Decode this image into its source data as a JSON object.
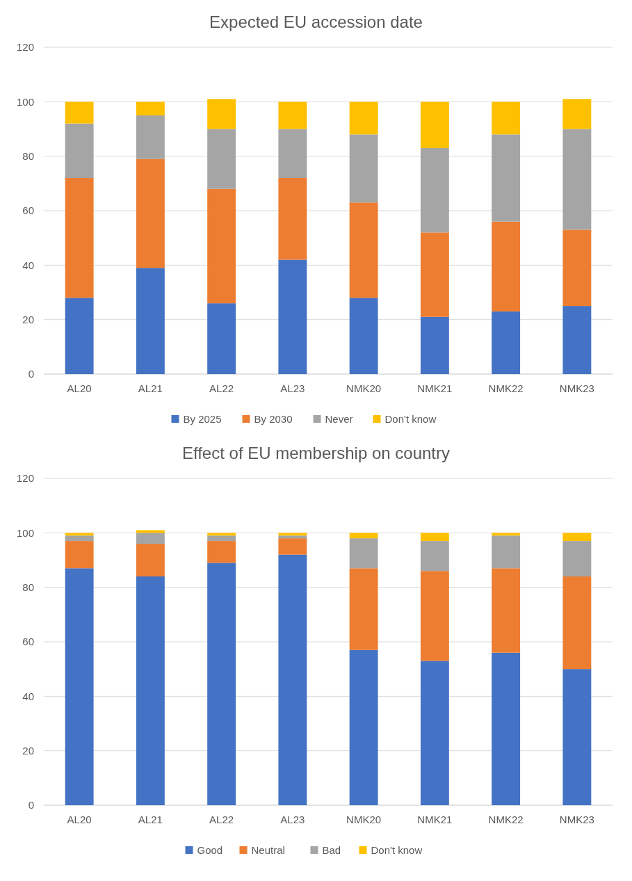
{
  "chart_data": [
    {
      "type": "bar",
      "title": "Expected EU accession date",
      "stacked": true,
      "categories": [
        "AL20",
        "AL21",
        "AL22",
        "AL23",
        "NMK20",
        "NMK21",
        "NMK22",
        "NMK23"
      ],
      "ylim": [
        0,
        120
      ],
      "yticks": [
        0,
        20,
        40,
        60,
        80,
        100,
        120
      ],
      "grid": "y",
      "legend": "bottom",
      "series": [
        {
          "name": "By 2025",
          "color": "#4472c4",
          "values": [
            28,
            39,
            26,
            42,
            28,
            21,
            23,
            25
          ]
        },
        {
          "name": "By 2030",
          "color": "#ed7d31",
          "values": [
            44,
            40,
            42,
            30,
            35,
            31,
            33,
            28
          ]
        },
        {
          "name": "Never",
          "color": "#a5a5a5",
          "values": [
            20,
            16,
            22,
            18,
            25,
            31,
            32,
            37
          ]
        },
        {
          "name": "Don't know",
          "color": "#ffc000",
          "values": [
            8,
            5,
            11,
            10,
            12,
            17,
            12,
            11
          ]
        }
      ]
    },
    {
      "type": "bar",
      "title": "Effect of EU membership on country",
      "stacked": true,
      "categories": [
        "AL20",
        "AL21",
        "AL22",
        "AL23",
        "NMK20",
        "NMK21",
        "NMK22",
        "NMK23"
      ],
      "ylim": [
        0,
        120
      ],
      "yticks": [
        0,
        20,
        40,
        60,
        80,
        100,
        120
      ],
      "grid": "y",
      "legend": "bottom",
      "series": [
        {
          "name": "Good",
          "color": "#4472c4",
          "values": [
            87,
            84,
            89,
            92,
            57,
            53,
            56,
            50
          ]
        },
        {
          "name": "Neutral",
          "color": "#ed7d31",
          "values": [
            10,
            12,
            8,
            6,
            30,
            33,
            31,
            34
          ]
        },
        {
          "name": "Bad",
          "color": "#a5a5a5",
          "values": [
            2,
            4,
            2,
            1,
            11,
            11,
            12,
            13
          ]
        },
        {
          "name": "Don't know",
          "color": "#ffc000",
          "values": [
            1,
            1,
            1,
            1,
            2,
            3,
            1,
            3
          ]
        }
      ]
    }
  ]
}
